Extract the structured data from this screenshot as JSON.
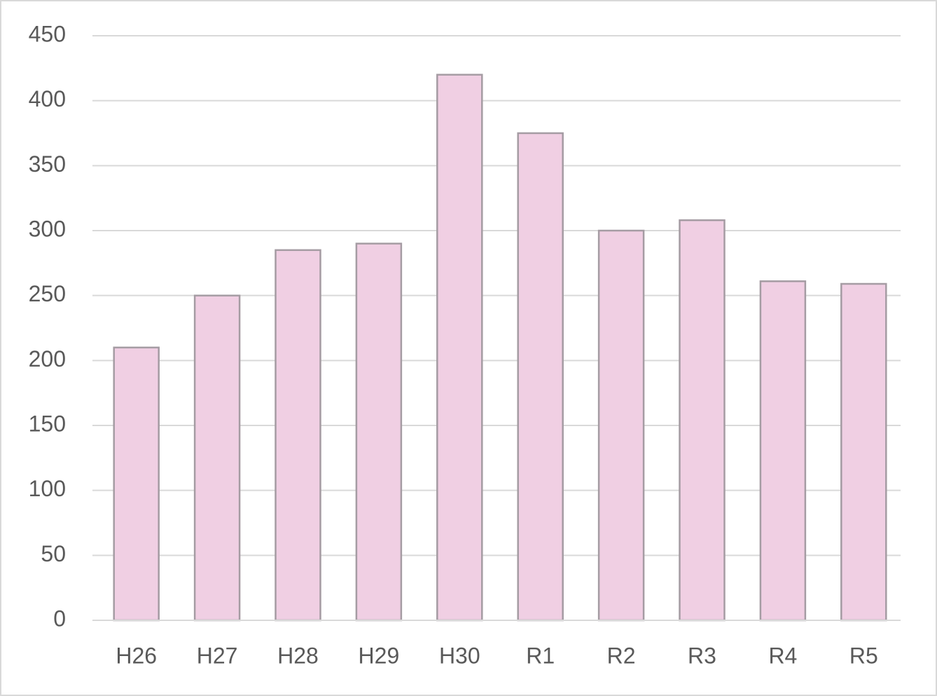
{
  "chart_data": {
    "type": "bar",
    "categories": [
      "H26",
      "H27",
      "H28",
      "H29",
      "H30",
      "R1",
      "R2",
      "R3",
      "R4",
      "R5"
    ],
    "values": [
      210,
      250,
      285,
      290,
      420,
      375,
      300,
      308,
      261,
      259
    ],
    "color": "#f0cfe3",
    "ylim": [
      0,
      450
    ],
    "yticks": [
      0,
      50,
      100,
      150,
      200,
      250,
      300,
      350,
      400,
      450
    ],
    "grid": true
  }
}
